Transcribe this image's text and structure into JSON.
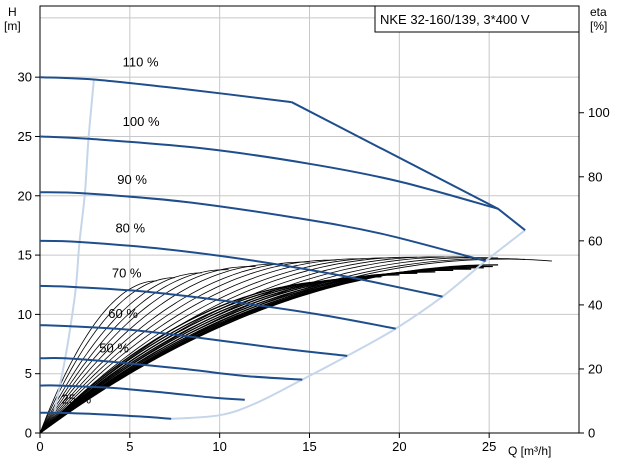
{
  "chart_data": {
    "type": "line",
    "title": "NKE 32-160/139, 3*400 V",
    "xlabel": "Q [m³/h]",
    "ylabel_left_name": "H",
    "ylabel_left_unit": "[m]",
    "ylabel_right_name": "eta",
    "ylabel_right_unit": "[%]",
    "xlim": [
      0,
      30
    ],
    "ylim": [
      0,
      36
    ],
    "y2lim": [
      0,
      133.33
    ],
    "grid": true,
    "x_ticks": [
      "0",
      "5",
      "10",
      "15",
      "20",
      "25"
    ],
    "y_ticks": [
      "0",
      "5",
      "10",
      "15",
      "20",
      "25",
      "30"
    ],
    "y2_ticks": [
      "0",
      "20",
      "40",
      "60",
      "80",
      "100"
    ],
    "colors": {
      "speed_curve": "#1f4e8c",
      "limit_curve": "#c5d6ea",
      "efficiency_curve": "#000000",
      "grid": "#c8c8c8"
    },
    "speed_curves": [
      {
        "label": "110 %",
        "label_x": 4.6,
        "label_y": 30.9,
        "points": [
          [
            0,
            30
          ],
          [
            3,
            29.8
          ],
          [
            8,
            29
          ],
          [
            14,
            27.9
          ]
        ]
      },
      {
        "label": "100 %",
        "label_x": 4.6,
        "label_y": 25.9,
        "points": [
          [
            0,
            25
          ],
          [
            2.7,
            24.8
          ],
          [
            9,
            24
          ],
          [
            15,
            22.7
          ],
          [
            20,
            21.2
          ],
          [
            25.5,
            18.9
          ]
        ]
      },
      {
        "label": "90 %",
        "label_x": 4.3,
        "label_y": 21.0,
        "points": [
          [
            0,
            20.3
          ],
          [
            2.5,
            20.2
          ],
          [
            8,
            19.5
          ],
          [
            14,
            18.2
          ],
          [
            19,
            16.8
          ],
          [
            24.8,
            14.5
          ]
        ]
      },
      {
        "label": "80 %",
        "label_x": 4.2,
        "label_y": 16.9,
        "points": [
          [
            0,
            16.2
          ],
          [
            2.2,
            16.1
          ],
          [
            7,
            15.5
          ],
          [
            12,
            14.5
          ],
          [
            17,
            13.2
          ],
          [
            22.4,
            11.5
          ]
        ]
      },
      {
        "label": "70 %",
        "label_x": 4.0,
        "label_y": 13.1,
        "points": [
          [
            0,
            12.4
          ],
          [
            2,
            12.3
          ],
          [
            6,
            11.9
          ],
          [
            11,
            11
          ],
          [
            15.5,
            10
          ],
          [
            19.8,
            8.8
          ]
        ]
      },
      {
        "label": "60 %",
        "label_x": 3.8,
        "label_y": 9.7,
        "points": [
          [
            0,
            9.1
          ],
          [
            1.7,
            9.0
          ],
          [
            5,
            8.7
          ],
          [
            9,
            8
          ],
          [
            13,
            7.2
          ],
          [
            17.1,
            6.5
          ]
        ]
      },
      {
        "label": "50 %",
        "label_x": 3.3,
        "label_y": 6.8,
        "points": [
          [
            0,
            6.3
          ],
          [
            1.4,
            6.3
          ],
          [
            4,
            6.0
          ],
          [
            8,
            5.4
          ],
          [
            11.5,
            4.8
          ],
          [
            14.6,
            4.5
          ]
        ]
      },
      {
        "label": "",
        "label_x": 0,
        "label_y": 0,
        "points": [
          [
            0,
            4.0
          ],
          [
            1.1,
            4.0
          ],
          [
            4,
            3.8
          ],
          [
            7,
            3.4
          ],
          [
            9.5,
            3.0
          ],
          [
            11.4,
            2.8
          ]
        ]
      },
      {
        "label": "25 %",
        "label_x": 1.2,
        "label_y": 2.5,
        "points": [
          [
            0,
            1.7
          ],
          [
            0.8,
            1.7
          ],
          [
            3,
            1.6
          ],
          [
            5.5,
            1.4
          ],
          [
            7.3,
            1.2
          ]
        ]
      }
    ],
    "outer_limit": [
      [
        14,
        27.9
      ],
      [
        25.5,
        18.9
      ],
      [
        27,
        17.1
      ]
    ],
    "right_limit": [
      [
        7.3,
        1.2
      ],
      [
        10,
        1.5
      ],
      [
        12,
        2.5
      ],
      [
        14.6,
        4.5
      ],
      [
        17.1,
        6.5
      ],
      [
        19.8,
        8.8
      ],
      [
        22.4,
        11.5
      ],
      [
        24.8,
        14.5
      ],
      [
        27,
        17.1
      ]
    ],
    "min_flow_limit": [
      [
        0.8,
        1.7
      ],
      [
        1.1,
        4.0
      ],
      [
        1.4,
        6.3
      ],
      [
        1.7,
        9.0
      ],
      [
        2.0,
        12.3
      ],
      [
        2.2,
        16.1
      ],
      [
        2.5,
        20.2
      ],
      [
        2.7,
        24.8
      ],
      [
        3.0,
        29.8
      ]
    ],
    "efficiency_curves": [
      {
        "end_q": 25.5,
        "peak_q": 25.5,
        "peak_eta": 52.5
      },
      {
        "end_q": 25.2,
        "peak_q": 24.8,
        "peak_eta": 52.0
      },
      {
        "end_q": 24.7,
        "peak_q": 24.2,
        "peak_eta": 51.6
      },
      {
        "end_q": 24.0,
        "peak_q": 23.5,
        "peak_eta": 51.2
      },
      {
        "end_q": 23.0,
        "peak_q": 22.7,
        "peak_eta": 50.8
      },
      {
        "end_q": 22.0,
        "peak_q": 21.8,
        "peak_eta": 50.3
      },
      {
        "end_q": 21.0,
        "peak_q": 20.9,
        "peak_eta": 49.9
      },
      {
        "end_q": 20.0,
        "peak_q": 20.0,
        "peak_eta": 49.4
      },
      {
        "end_q": 19.0,
        "peak_q": 19.0,
        "peak_eta": 48.8
      },
      {
        "end_q": 18.0,
        "peak_q": 18.0,
        "peak_eta": 48.2
      },
      {
        "end_q": 17.0,
        "peak_q": 17.0,
        "peak_eta": 47.6
      },
      {
        "end_q": 28.5,
        "peak_q": 25.8,
        "peak_eta": 54.3
      },
      {
        "end_q": 27.0,
        "peak_q": 25.2,
        "peak_eta": 54.5
      },
      {
        "end_q": 25.5,
        "peak_q": 24.3,
        "peak_eta": 54.8
      },
      {
        "end_q": 24.0,
        "peak_q": 23.2,
        "peak_eta": 55.0
      },
      {
        "end_q": 22.5,
        "peak_q": 22.0,
        "peak_eta": 55.0
      },
      {
        "end_q": 21.0,
        "peak_q": 20.6,
        "peak_eta": 54.9
      },
      {
        "end_q": 19.5,
        "peak_q": 19.3,
        "peak_eta": 54.7
      },
      {
        "end_q": 18.0,
        "peak_q": 17.8,
        "peak_eta": 54.4
      },
      {
        "end_q": 16.5,
        "peak_q": 16.3,
        "peak_eta": 54.0
      },
      {
        "end_q": 15.0,
        "peak_q": 14.8,
        "peak_eta": 53.4
      },
      {
        "end_q": 13.5,
        "peak_q": 13.2,
        "peak_eta": 52.8
      },
      {
        "end_q": 12.0,
        "peak_q": 11.7,
        "peak_eta": 52.0
      },
      {
        "end_q": 10.5,
        "peak_q": 10.3,
        "peak_eta": 51.0
      },
      {
        "end_q": 9.0,
        "peak_q": 9.0,
        "peak_eta": 50.0
      },
      {
        "end_q": 7.5,
        "peak_q": 7.5,
        "peak_eta": 48.5
      },
      {
        "end_q": 6.5,
        "peak_q": 6.5,
        "peak_eta": 47.5
      }
    ]
  }
}
